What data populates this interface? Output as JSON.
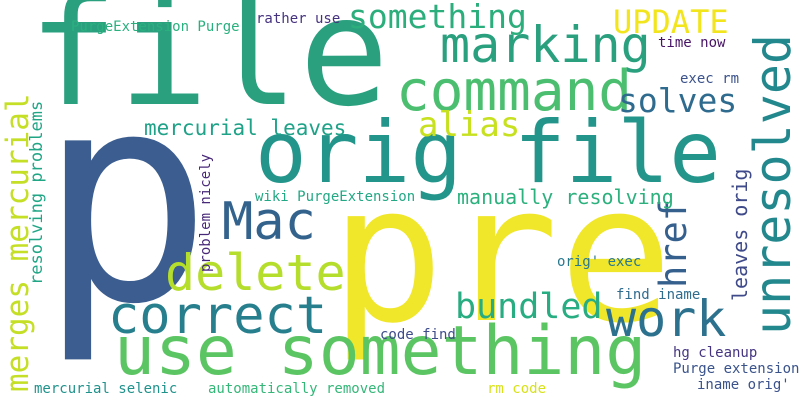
{
  "words": [
    {
      "id": "p",
      "text": "p",
      "color": "#3b5d8f"
    },
    {
      "id": "file",
      "text": "file",
      "color": "#2aa07f"
    },
    {
      "id": "pre",
      "text": "pre",
      "color": "#f0e62a"
    },
    {
      "id": "orig-file",
      "text": "orig file",
      "color": "#23958a"
    },
    {
      "id": "use-something",
      "text": "use something",
      "color": "#5cc563"
    },
    {
      "id": "command",
      "text": "command",
      "color": "#4bbf6f"
    },
    {
      "id": "marking",
      "text": "marking",
      "color": "#2aa07f"
    },
    {
      "id": "unresolved",
      "text": "unresolved",
      "color": "#23888e"
    },
    {
      "id": "something",
      "text": "something",
      "color": "#2cae7c"
    },
    {
      "id": "correct",
      "text": "correct",
      "color": "#277f8e"
    },
    {
      "id": "delete",
      "text": "delete",
      "color": "#b5dd2b"
    },
    {
      "id": "mac",
      "text": "Mac",
      "color": "#33638d"
    },
    {
      "id": "work",
      "text": "work",
      "color": "#2c718e"
    },
    {
      "id": "update",
      "text": "UPDATE",
      "color": "#f2e51d"
    },
    {
      "id": "alias",
      "text": "alias",
      "color": "#c7e020"
    },
    {
      "id": "solves",
      "text": "solves",
      "color": "#2f6b8e"
    },
    {
      "id": "bundled",
      "text": "bundled",
      "color": "#27ad81"
    },
    {
      "id": "href",
      "text": "href",
      "color": "#355f8d"
    },
    {
      "id": "merges-mercurial",
      "text": "merges mercurial",
      "color": "#c4df26"
    },
    {
      "id": "mercurial-leaves",
      "text": "mercurial leaves",
      "color": "#1fa288"
    },
    {
      "id": "manually-resolving",
      "text": "manually resolving",
      "color": "#2cb17e"
    },
    {
      "id": "leaves-orig",
      "text": "leaves orig",
      "color": "#3e4a89"
    },
    {
      "id": "resolving-problems",
      "text": "resolving problems",
      "color": "#21a685"
    },
    {
      "id": "purgeextension-purge",
      "text": "PurgeExtension Purge",
      "color": "#2ab07f"
    },
    {
      "id": "rather-use",
      "text": "rather use",
      "color": "#46337f"
    },
    {
      "id": "time-now",
      "text": "time now",
      "color": "#471365"
    },
    {
      "id": "exec-rm",
      "text": "exec rm",
      "color": "#3b528b"
    },
    {
      "id": "problem-nicely",
      "text": "problem nicely",
      "color": "#482878"
    },
    {
      "id": "wiki-purgeextension",
      "text": "wiki PurgeExtension",
      "color": "#22a884"
    },
    {
      "id": "orig-exec",
      "text": "orig' exec",
      "color": "#29798e"
    },
    {
      "id": "find-iname",
      "text": "find iname",
      "color": "#2f6c8e"
    },
    {
      "id": "code-find",
      "text": "code find",
      "color": "#3e4c8a"
    },
    {
      "id": "hg-cleanup",
      "text": "hg cleanup",
      "color": "#453581"
    },
    {
      "id": "purge-extension",
      "text": "Purge extension",
      "color": "#3a538b"
    },
    {
      "id": "mercurial-selenic",
      "text": "mercurial selenic",
      "color": "#20928c"
    },
    {
      "id": "automatically-removed",
      "text": "automatically removed",
      "color": "#35b779"
    },
    {
      "id": "rm-code",
      "text": "rm code",
      "color": "#d8e219"
    },
    {
      "id": "iname-orig",
      "text": "iname orig'",
      "color": "#3b528b"
    }
  ]
}
